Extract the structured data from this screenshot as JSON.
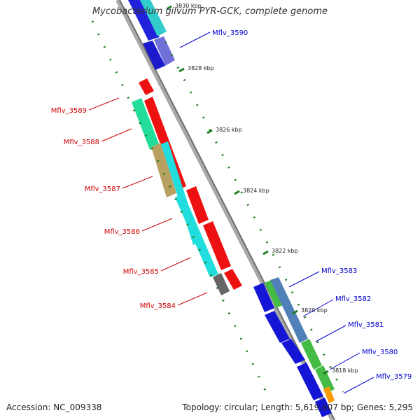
{
  "title": "Mycobacterium gilvum PYR-GCK, complete genome",
  "footer": {
    "accession": "Accession: NC_009338",
    "summary": "Topology: circular; Length: 5,619,607 bp; Genes: 5,295"
  },
  "colors": {
    "backbone": "#888888",
    "tick": "#1e7d1e",
    "reverse_label": "#cc0000",
    "forward_label": "#0000cc"
  },
  "ticks": [
    {
      "label": "3830 kbp"
    },
    {
      "label": "3828 kbp"
    },
    {
      "label": "3826 kbp"
    },
    {
      "label": "3824 kbp"
    },
    {
      "label": "3822 kbp"
    },
    {
      "label": "3820 kbp"
    },
    {
      "label": "3818 kbp"
    }
  ],
  "genes": [
    {
      "name": "Mflv_3590",
      "strand": "forward"
    },
    {
      "name": "Mflv_3589",
      "strand": "reverse"
    },
    {
      "name": "Mflv_3588",
      "strand": "reverse"
    },
    {
      "name": "Mflv_3587",
      "strand": "reverse"
    },
    {
      "name": "Mflv_3586",
      "strand": "reverse"
    },
    {
      "name": "Mflv_3585",
      "strand": "reverse"
    },
    {
      "name": "Mflv_3584",
      "strand": "reverse"
    },
    {
      "name": "Mflv_3583",
      "strand": "forward"
    },
    {
      "name": "Mflv_3582",
      "strand": "forward"
    },
    {
      "name": "Mflv_3581",
      "strand": "forward"
    },
    {
      "name": "Mflv_3580",
      "strand": "forward"
    },
    {
      "name": "Mflv_3579",
      "strand": "forward"
    }
  ]
}
